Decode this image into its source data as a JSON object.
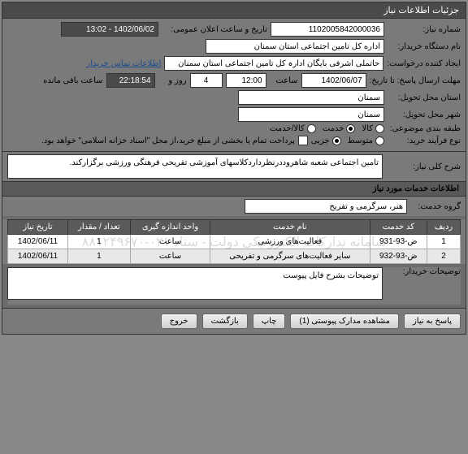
{
  "header": {
    "title": "جزئیات اطلاعات نیاز"
  },
  "form": {
    "need_no_label": "شماره نیاز:",
    "need_no": "1102005842000036",
    "announce_label": "تاریخ و ساعت اعلان عمومی:",
    "announce_val": "1402/06/02 - 13:02",
    "buyer_org_label": "نام دستگاه خریدار:",
    "buyer_org": "اداره کل تامین اجتماعی استان سمنان",
    "requester_label": "ایجاد کننده درخواست:",
    "requester": "حاتملی  اشرفی  بایگان  ادارہ کل تامین اجتماعی استان سمنان",
    "contact_link": "اطلاعات تماس خریدار",
    "deadline_label": "مهلت ارسال پاسخ: تا تاریخ:",
    "deadline_date": "1402/06/07",
    "hour_label": "ساعت",
    "deadline_hour": "12:00",
    "days": "4",
    "and_label": "روز و",
    "countdown": "22:18:54",
    "remaining_label": "ساعت باقی مانده",
    "delivery_prov_label": "استان محل تحویل:",
    "delivery_prov": "سمنان",
    "delivery_city_label": "شهر محل تحویل:",
    "delivery_city": "سمنان",
    "category_label": "طبقه بندی موضوعی:",
    "cat_goods": "کالا",
    "cat_service": "خدمت",
    "cat_both": "کالا/خدمت",
    "process_label": "نوع فرآیند خرید:",
    "proc_low": "متوسط",
    "proc_mid": "جزیی",
    "pay_note": "پرداخت تمام یا بخشی از مبلغ خرید،از محل \"اسناد خزانه اسلامی\" خواهد بود."
  },
  "sections": {
    "overall_label": "شرح کلی نیاز:",
    "overall_text": "تامین اجتماعی شعبه شاهروددرنظرداردکلاسهای آموزشی تفریحی فرهنگی ورزشی برگزارکند.",
    "services_header": "اطلاعات خدمات مورد نیاز",
    "service_group_label": "گروه خدمت:",
    "service_group": "هنر، سرگرمی و تفریح"
  },
  "table": {
    "cols": [
      "ردیف",
      "کد خدمت",
      "نام خدمت",
      "واحد اندازه گیری",
      "تعداد / مقدار",
      "تاریخ نیاز"
    ],
    "rows": [
      [
        "1",
        "ض-93-931",
        "فعالیت‌های ورزشی",
        "ساعت",
        "1",
        "1402/06/11"
      ],
      [
        "2",
        "ض-93-932",
        "سایر فعالیت‌های سرگرمی و تفریحی",
        "ساعت",
        "1",
        "1402/06/11"
      ]
    ]
  },
  "buyer_notes": {
    "label": "توضیحات خریدار:",
    "text": "توضیحات بشرح فایل پیوست"
  },
  "buttons": {
    "respond": "پاسخ به نیاز",
    "attachments": "مشاهده مدارک پیوستی (1)",
    "print": "چاپ",
    "back": "بازگشت",
    "exit": "خروج"
  },
  "watermark": "سامانه تدارکات الکترونیکی دولت - ستاد ۰۲۱-۸۸۱۲۴۹۶۷۰"
}
